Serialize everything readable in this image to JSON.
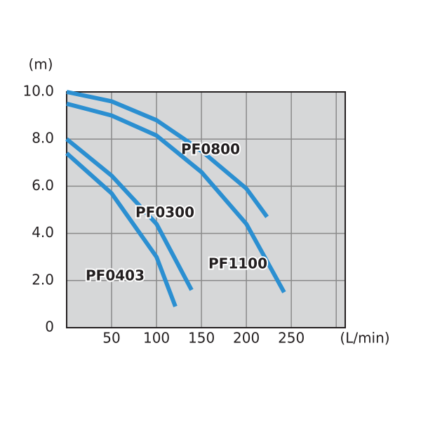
{
  "chart_data": {
    "type": "line",
    "y_label": "(m)",
    "x_label": "(L/min)",
    "xlim": [
      0,
      310
    ],
    "ylim": [
      0,
      10
    ],
    "xticks": [
      50,
      100,
      150,
      200,
      250,
      {
        "value": 300,
        "label": null
      }
    ],
    "yticks": [
      0,
      {
        "value": 2,
        "label": "2.0"
      },
      {
        "value": 4,
        "label": "4.0"
      },
      {
        "value": 6,
        "label": "6.0"
      },
      {
        "value": 8,
        "label": "8.0"
      },
      {
        "value": 10,
        "label": "10.0"
      }
    ],
    "grid": true,
    "series": [
      {
        "name": "PF0800",
        "color": "#2b8fd1",
        "x": [
          0,
          50,
          100,
          150,
          200,
          223
        ],
        "values": [
          10.0,
          9.6,
          8.8,
          7.5,
          5.9,
          4.7
        ]
      },
      {
        "name": "PF1100",
        "color": "#2b8fd1",
        "x": [
          0,
          50,
          100,
          150,
          200,
          242
        ],
        "values": [
          9.5,
          9.0,
          8.15,
          6.6,
          4.4,
          1.5
        ]
      },
      {
        "name": "PF0300",
        "color": "#2b8fd1",
        "x": [
          0,
          50,
          100,
          139
        ],
        "values": [
          8.0,
          6.45,
          4.4,
          1.6
        ]
      },
      {
        "name": "PF0403",
        "color": "#2b8fd1",
        "x": [
          0,
          50,
          100,
          121
        ],
        "values": [
          7.4,
          5.7,
          3.0,
          0.9
        ]
      }
    ]
  }
}
